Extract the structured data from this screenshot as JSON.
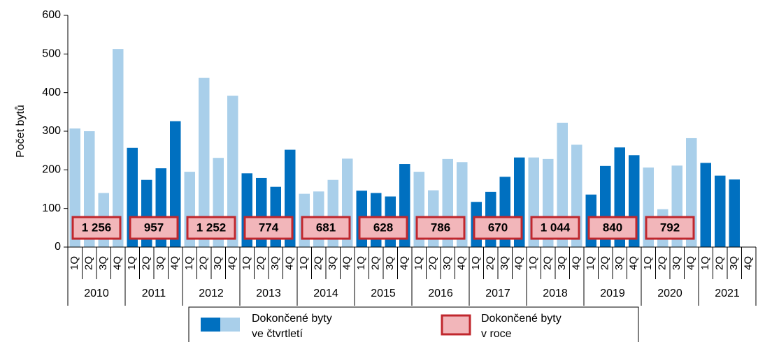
{
  "chart_data": {
    "type": "bar",
    "y_label": "Počet bytů",
    "quarters": [
      "1Q",
      "2Q",
      "3Q",
      "4Q"
    ],
    "years": [
      "2010",
      "2011",
      "2012",
      "2013",
      "2014",
      "2015",
      "2016",
      "2017",
      "2018",
      "2019",
      "2020",
      "2021"
    ],
    "colors": [
      "#a9cfea",
      "#0070c0"
    ],
    "values": [
      307,
      300,
      140,
      513,
      257,
      174,
      204,
      326,
      195,
      438,
      231,
      392,
      191,
      179,
      156,
      252,
      138,
      144,
      174,
      229,
      146,
      140,
      131,
      215,
      195,
      147,
      228,
      220,
      117,
      143,
      182,
      232,
      232,
      228,
      322,
      265,
      136,
      210,
      258,
      238,
      206,
      98,
      211,
      282,
      218,
      185,
      175,
      null
    ],
    "annual": {
      "values": [
        1256,
        957,
        1252,
        774,
        681,
        628,
        786,
        670,
        1044,
        840,
        792
      ],
      "value_labels": [
        "1 256",
        "957",
        "1 252",
        "774",
        "681",
        "628",
        "786",
        "670",
        "1 044",
        "840",
        "792"
      ],
      "color": "#f2b6ba",
      "border": "#c0272d"
    },
    "legend": [
      [
        "Dokončené  byty",
        "ve čtvrtletí"
      ],
      [
        "Dokončené byty",
        "v roce"
      ]
    ],
    "ylim": [
      0,
      600
    ],
    "yticks": [
      0,
      100,
      200,
      300,
      400,
      500,
      600
    ]
  }
}
